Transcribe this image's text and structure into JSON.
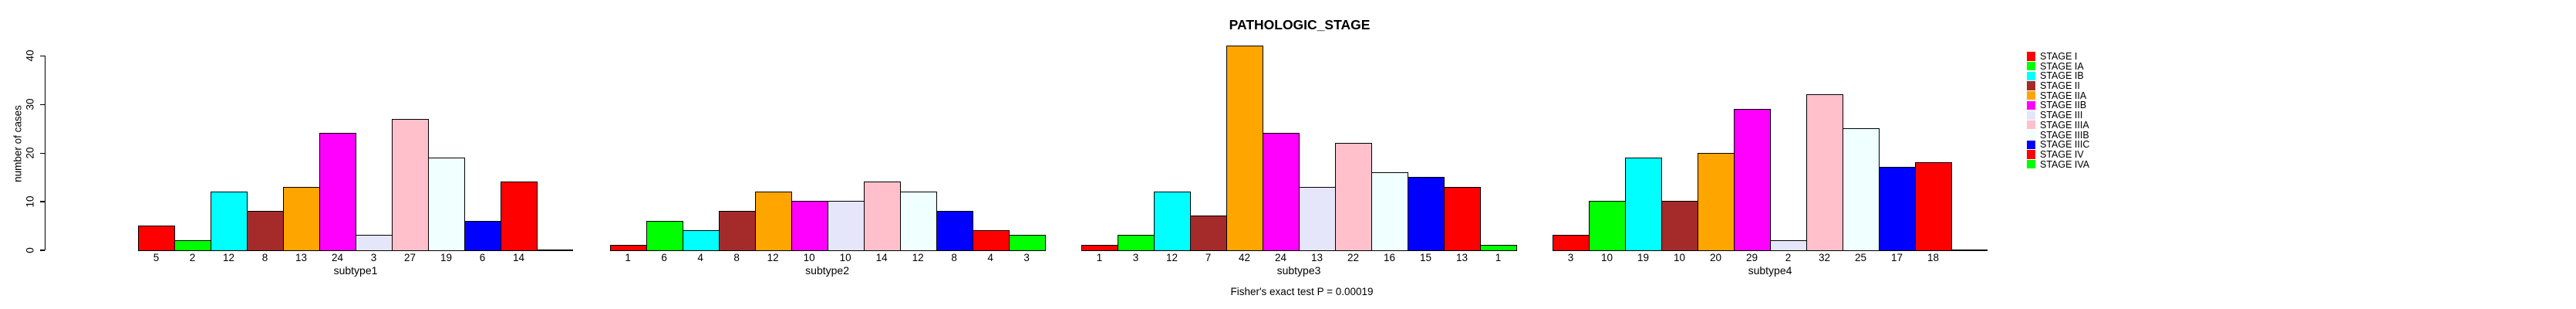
{
  "chart_data": {
    "type": "bar",
    "title": "PATHOLOGIC_STAGE",
    "ylabel": "number of cases",
    "annotation": "Fisher's exact test P = 0.00019",
    "ylim": [
      0,
      40
    ],
    "yticks": [
      0,
      10,
      20,
      30,
      40
    ],
    "grid": false,
    "legend_position": "right",
    "bar_border_color": "#000000",
    "stages": [
      {
        "label": "STAGE I",
        "color": "#FF0000"
      },
      {
        "label": "STAGE IA",
        "color": "#00FF00"
      },
      {
        "label": "STAGE IB",
        "color": "#00FFFF"
      },
      {
        "label": "STAGE II",
        "color": "#A52A2A"
      },
      {
        "label": "STAGE IIA",
        "color": "#FFA500"
      },
      {
        "label": "STAGE IIB",
        "color": "#FF00FF"
      },
      {
        "label": "STAGE III",
        "color": "#E6E6FA"
      },
      {
        "label": "STAGE IIIA",
        "color": "#FFC0CB"
      },
      {
        "label": "STAGE IIIB",
        "color": "#F0FFFF"
      },
      {
        "label": "STAGE IIIC",
        "color": "#0000FF"
      },
      {
        "label": "STAGE IV",
        "color": "#FF0000"
      },
      {
        "label": "STAGE IVA",
        "color": "#00FF00"
      }
    ],
    "panels": [
      {
        "xlabel": "subtype1",
        "values": [
          5,
          2,
          12,
          8,
          13,
          24,
          3,
          27,
          19,
          6,
          14,
          null
        ]
      },
      {
        "xlabel": "subtype2",
        "values": [
          1,
          6,
          4,
          8,
          12,
          10,
          10,
          14,
          12,
          8,
          4,
          3
        ]
      },
      {
        "xlabel": "subtype3",
        "values": [
          1,
          3,
          12,
          7,
          42,
          24,
          13,
          22,
          16,
          15,
          13,
          1
        ]
      },
      {
        "xlabel": "subtype4",
        "values": [
          3,
          10,
          19,
          10,
          20,
          29,
          2,
          32,
          25,
          17,
          18,
          null
        ]
      }
    ]
  }
}
